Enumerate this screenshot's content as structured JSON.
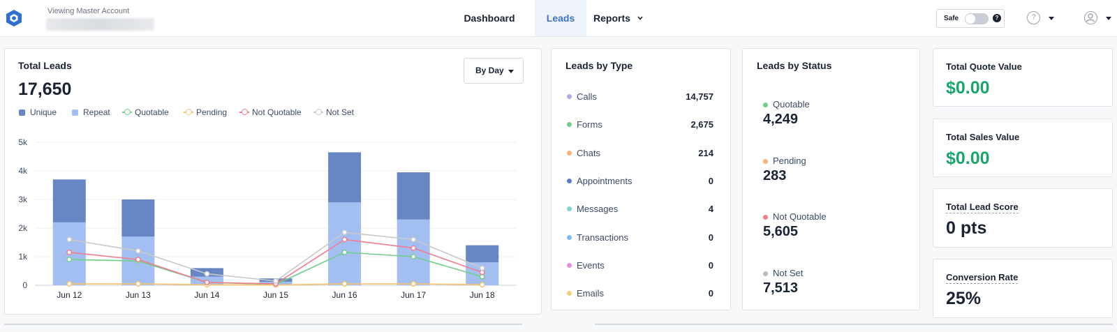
{
  "header": {
    "account_label": "Viewing Master Account",
    "nav": [
      {
        "label": "Dashboard",
        "active": false
      },
      {
        "label": "Leads",
        "active": true
      },
      {
        "label": "Reports",
        "active": false
      }
    ],
    "safe_label": "Safe",
    "safe_enabled": false,
    "icons": [
      "logo-icon",
      "help-icon",
      "user-icon",
      "chevron-down-icon"
    ]
  },
  "total_leads": {
    "title": "Total Leads",
    "value": "17,650",
    "range_select": "By Day",
    "legend": [
      "Unique",
      "Repeat",
      "Quotable",
      "Pending",
      "Not Quotable",
      "Not Set"
    ]
  },
  "chart_data": {
    "type": "bar",
    "categories": [
      "Jun 12",
      "Jun 13",
      "Jun 14",
      "Jun 15",
      "Jun 16",
      "Jun 17",
      "Jun 18"
    ],
    "ylim": [
      0,
      5000
    ],
    "yticks": [
      "0",
      "1k",
      "2k",
      "3k",
      "4k",
      "5k"
    ],
    "grid": true,
    "stacked_series": [
      {
        "name": "Repeat",
        "color": "#a3bff2",
        "values": [
          2200,
          1700,
          300,
          120,
          2900,
          2300,
          800
        ]
      },
      {
        "name": "Unique",
        "color": "#6787c4",
        "values": [
          1500,
          1300,
          300,
          120,
          1750,
          1650,
          600
        ]
      }
    ],
    "line_series": [
      {
        "name": "Quotable",
        "color": "#6fcf8a",
        "values": [
          900,
          850,
          100,
          30,
          1150,
          1000,
          300
        ]
      },
      {
        "name": "Pending",
        "color": "#f5c46b",
        "values": [
          50,
          50,
          20,
          10,
          50,
          50,
          20
        ]
      },
      {
        "name": "Not Quotable",
        "color": "#f27c8e",
        "values": [
          1150,
          900,
          100,
          50,
          1600,
          1300,
          450
        ]
      },
      {
        "name": "Not Set",
        "color": "#c8c8c8",
        "values": [
          1600,
          1200,
          400,
          150,
          1850,
          1600,
          600
        ]
      }
    ]
  },
  "leads_by_type": {
    "title": "Leads by Type",
    "rows": [
      {
        "label": "Calls",
        "value": "14,757",
        "color": "#b6a7e8"
      },
      {
        "label": "Forms",
        "value": "2,675",
        "color": "#6fcf8a"
      },
      {
        "label": "Chats",
        "value": "214",
        "color": "#f7b37a"
      },
      {
        "label": "Appointments",
        "value": "0",
        "color": "#5a7cc4"
      },
      {
        "label": "Messages",
        "value": "4",
        "color": "#7ad8d0"
      },
      {
        "label": "Transactions",
        "value": "0",
        "color": "#7db7ec"
      },
      {
        "label": "Events",
        "value": "0",
        "color": "#e48fe0"
      },
      {
        "label": "Emails",
        "value": "0",
        "color": "#f5cf7a"
      }
    ]
  },
  "leads_by_status": {
    "title": "Leads by Status",
    "rows": [
      {
        "label": "Quotable",
        "value": "4,249",
        "color": "#6fcf8a"
      },
      {
        "label": "Pending",
        "value": "283",
        "color": "#f7b37a"
      },
      {
        "label": "Not Quotable",
        "value": "5,605",
        "color": "#f27c8e"
      },
      {
        "label": "Not Set",
        "value": "7,513",
        "color": "#b5bcc6"
      }
    ]
  },
  "kpis": [
    {
      "title": "Total Quote Value",
      "value": "$0.00",
      "color": "#1aa66b"
    },
    {
      "title": "Total Sales Value",
      "value": "$0.00",
      "color": "#1aa66b"
    },
    {
      "title": "Total Lead Score",
      "value": "0 pts",
      "color": "#1a2333"
    },
    {
      "title": "Conversion Rate",
      "value": "25%",
      "color": "#1a2333"
    }
  ]
}
